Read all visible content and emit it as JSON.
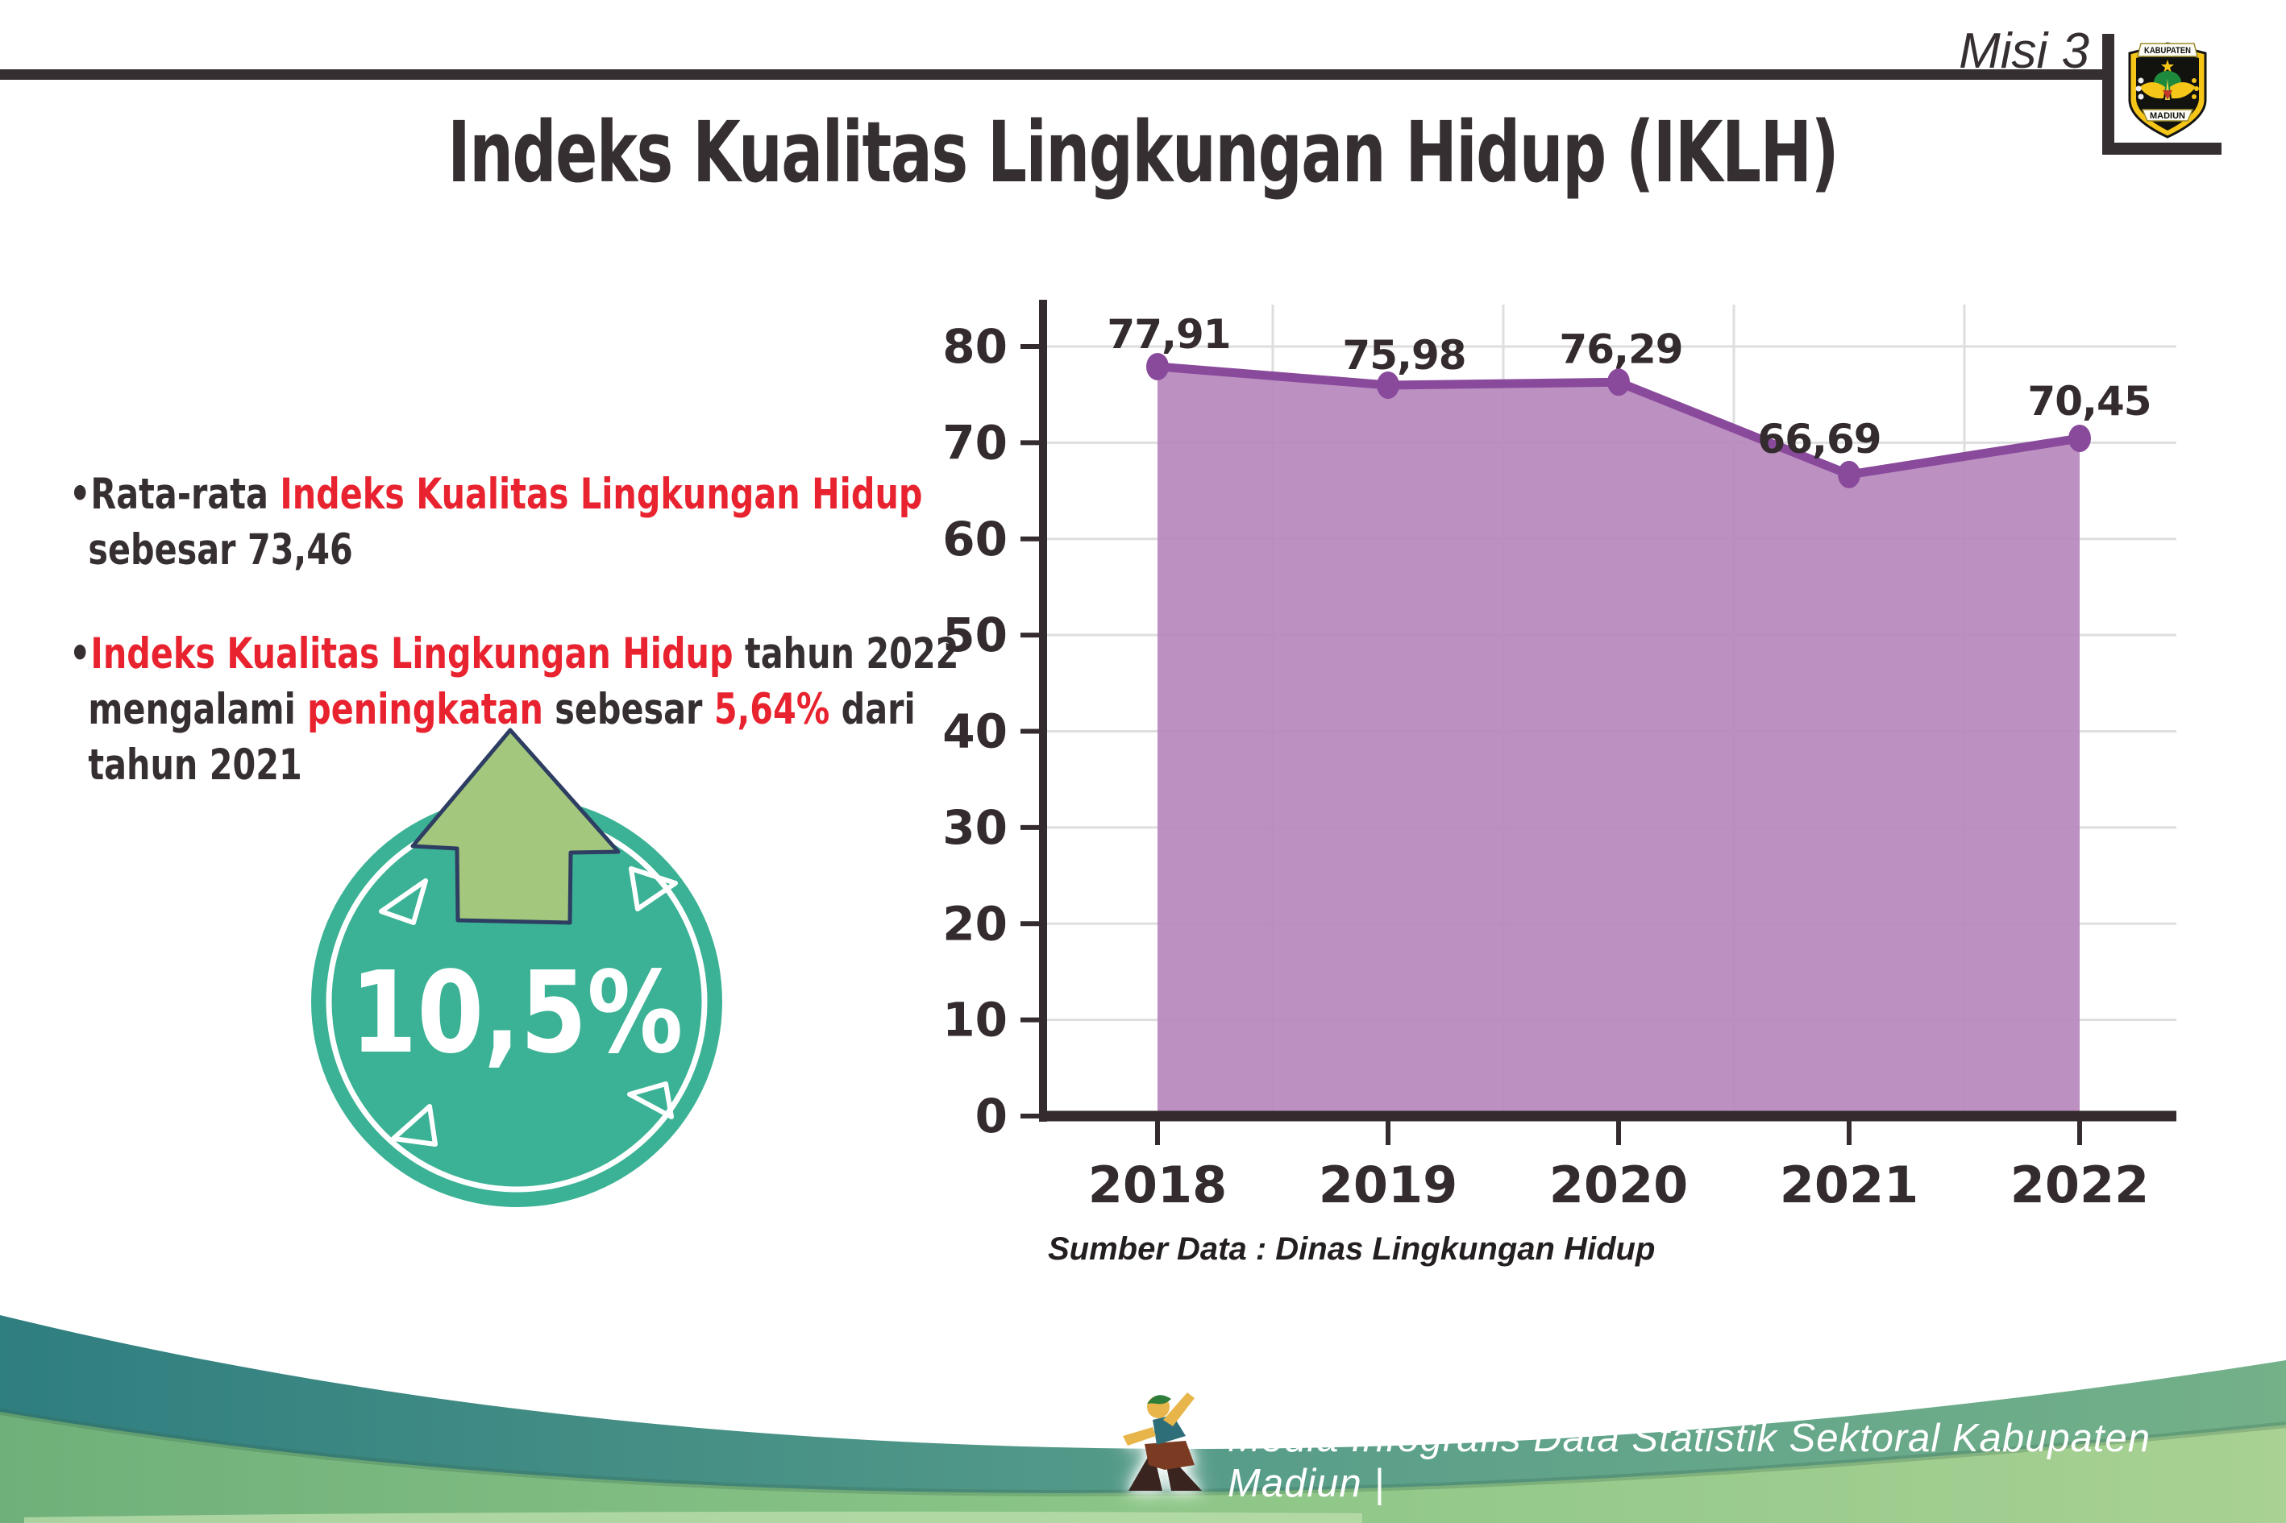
{
  "header": {
    "misi_label": "Misi 3",
    "logo": {
      "top_text": "KABUPATEN",
      "bottom_text": "MADIUN"
    }
  },
  "title": "Indeks Kualitas Lingkungan Hidup (IKLH)",
  "bullets": [
    {
      "bullet": "•",
      "segments": [
        {
          "text": "Rata-rata ",
          "style": "dark"
        },
        {
          "text": "Indeks Kualitas Lingkungan Hidup",
          "style": "red",
          "break": true
        },
        {
          "text": "sebesar 73,46",
          "style": "dark"
        }
      ]
    },
    {
      "bullet": "•",
      "segments": [
        {
          "text": "Indeks Kualitas Lingkungan Hidup",
          "style": "red"
        },
        {
          "text": " tahun 2022",
          "style": "dark",
          "break": true
        },
        {
          "text": "mengalami ",
          "style": "dark"
        },
        {
          "text": "peningkatan",
          "style": "red"
        },
        {
          "text": " sebesar ",
          "style": "dark"
        },
        {
          "text": "5,64%",
          "style": "red"
        },
        {
          "text": " dari",
          "style": "dark",
          "break": true
        },
        {
          "text": "tahun 2021",
          "style": "dark"
        }
      ]
    }
  ],
  "badge": {
    "value": "10,5%"
  },
  "chart_data": {
    "type": "area",
    "categories": [
      "2018",
      "2019",
      "2020",
      "2021",
      "2022"
    ],
    "values": [
      77.91,
      75.98,
      76.29,
      66.69,
      70.45
    ],
    "value_labels": [
      "77,91",
      "75,98",
      "76,29",
      "66,69",
      "70,45"
    ],
    "title": "",
    "xlabel": "",
    "ylabel": "",
    "ylim": [
      0,
      80
    ],
    "ytick_step": 10,
    "grid": true,
    "legend": "none",
    "line_color": "#8a4a9c",
    "fill_color": "#b688bd",
    "grid_color": "#dedede",
    "axis_color": "#332b2e",
    "source_note": "Sumber Data : Dinas Lingkungan Hidup"
  },
  "footer": {
    "credit": "Media Infografis Data Statistik Sektoral Kabupaten Madiun |"
  },
  "colors": {
    "red": "#e8232f",
    "dark": "#362f31",
    "teal_badge": "#3bb295",
    "arrow_green": "#a3c77d",
    "arrow_outline": "#2e3e63",
    "wave_teal": "#2f7e80",
    "wave_green": "#7dbd80"
  }
}
